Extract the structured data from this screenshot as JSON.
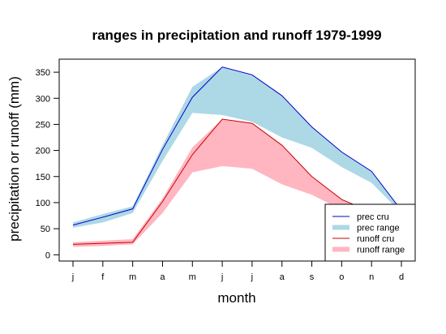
{
  "chart_data": {
    "type": "area",
    "title": "ranges in precipitation and runoff 1979-1999",
    "xlabel": "month",
    "ylabel": "precipitation or runoff (mm)",
    "categories": [
      "j",
      "f",
      "m",
      "a",
      "m",
      "j",
      "j",
      "a",
      "s",
      "o",
      "n",
      "d"
    ],
    "yticks": [
      0,
      50,
      100,
      150,
      200,
      250,
      300,
      350
    ],
    "ylim": [
      -12,
      375
    ],
    "grid": false,
    "legend_position": "bottom-right",
    "series": [
      {
        "name": "prec cru",
        "kind": "line",
        "color": "#0000cc",
        "values": [
          57,
          72,
          88,
          202,
          302,
          360,
          345,
          305,
          245,
          197,
          160,
          85
        ]
      },
      {
        "name": "prec range",
        "kind": "band",
        "color": "#add8e6",
        "upper": [
          62,
          78,
          93,
          210,
          322,
          360,
          345,
          305,
          245,
          197,
          160,
          85
        ],
        "lower": [
          52,
          62,
          80,
          180,
          272,
          268,
          255,
          225,
          205,
          168,
          138,
          80
        ]
      },
      {
        "name": "runoff cru",
        "kind": "line",
        "color": "#cc0000",
        "values": [
          20,
          22,
          24,
          102,
          192,
          260,
          252,
          210,
          150,
          106,
          82,
          60
        ]
      },
      {
        "name": "runoff range",
        "kind": "band",
        "color": "#ffb6c1",
        "upper": [
          24,
          27,
          30,
          108,
          206,
          260,
          252,
          210,
          150,
          106,
          82,
          60
        ],
        "lower": [
          15,
          17,
          20,
          80,
          158,
          170,
          165,
          135,
          115,
          86,
          74,
          56
        ]
      }
    ]
  }
}
